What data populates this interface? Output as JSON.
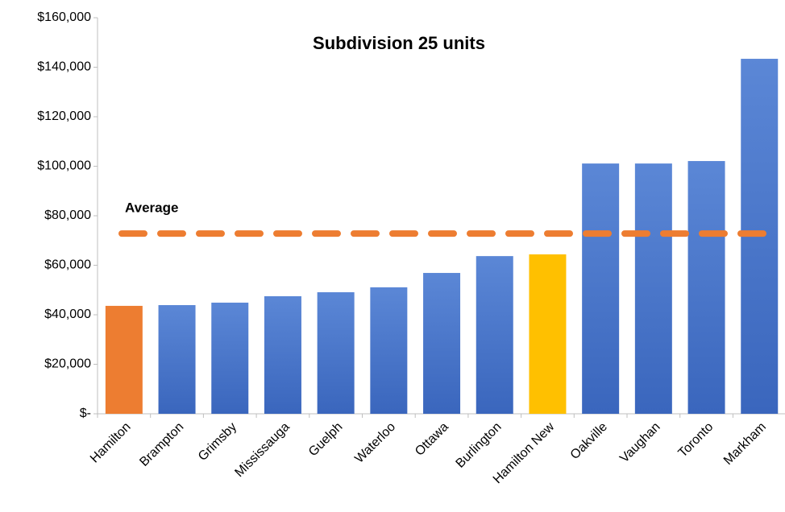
{
  "chart_data": {
    "type": "bar",
    "title": "Subdivision 25 units",
    "categories": [
      "Hamilton",
      "Brampton",
      "Grimsby",
      "Mississauga",
      "Guelph",
      "Waterloo",
      "Ottawa",
      "Burlington",
      "Hamilton New",
      "Oakville",
      "Vaughan",
      "Toronto",
      "Markham"
    ],
    "values": [
      43600,
      43900,
      44900,
      47500,
      49100,
      51100,
      56900,
      63700,
      64400,
      101100,
      101100,
      102100,
      143400
    ],
    "colors": [
      "#ed7d31",
      "#4472c4",
      "#4472c4",
      "#4472c4",
      "#4472c4",
      "#4472c4",
      "#4472c4",
      "#4472c4",
      "#ffc000",
      "#4472c4",
      "#4472c4",
      "#4472c4",
      "#4472c4"
    ],
    "average": {
      "label": "Average",
      "value": 72800,
      "color": "#ed7d31"
    },
    "ylim": [
      0,
      160000
    ],
    "yticks": [
      {
        "value": 0,
        "label": "$-"
      },
      {
        "value": 20000,
        "label": "$20,000"
      },
      {
        "value": 40000,
        "label": "$40,000"
      },
      {
        "value": 60000,
        "label": "$60,000"
      },
      {
        "value": 80000,
        "label": "$80,000"
      },
      {
        "value": 100000,
        "label": "$100,000"
      },
      {
        "value": 120000,
        "label": "$120,000"
      },
      {
        "value": 140000,
        "label": "$140,000"
      },
      {
        "value": 160000,
        "label": "$160,000"
      }
    ],
    "grid": false
  }
}
